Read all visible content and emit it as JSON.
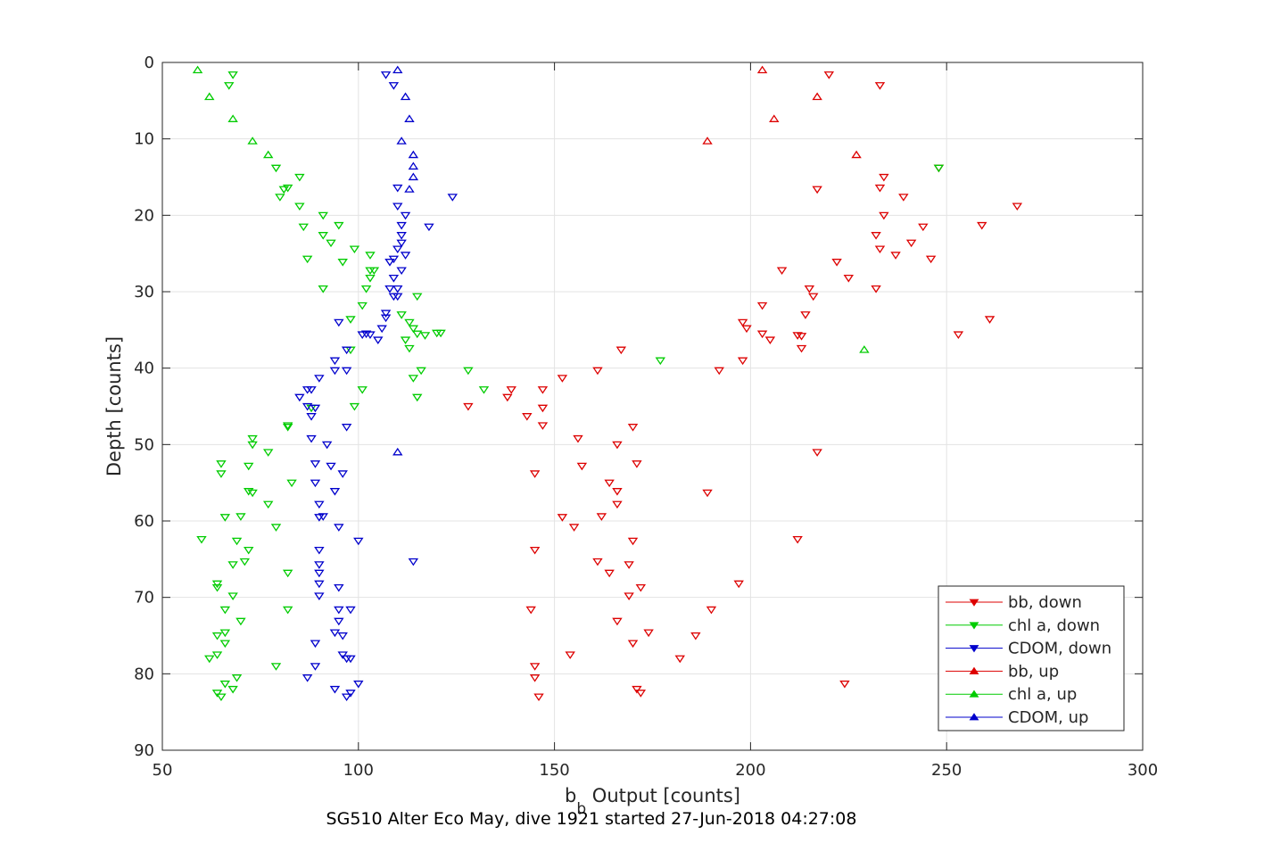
{
  "chart_data": {
    "type": "scatter",
    "title": "",
    "subtitle": "SG510 Alter Eco May, dive 1921 started 27-Jun-2018 04:27:08",
    "xlabel": "b",
    "xlabel_sub": "b",
    "xlabel_rest": " Output [counts]",
    "ylabel": "Depth [counts]",
    "xlim": [
      50,
      300
    ],
    "ylim": [
      0,
      90
    ],
    "y_reversed": true,
    "grid": true,
    "legend_position": "bottom-right",
    "x_ticks": [
      "50",
      "100",
      "150",
      "200",
      "250",
      "300"
    ],
    "y_ticks": [
      "0",
      "10",
      "20",
      "30",
      "40",
      "50",
      "60",
      "70",
      "80",
      "90"
    ],
    "series": [
      {
        "name": "bb, down",
        "marker": "triangle-down",
        "color": "#dd0000",
        "points": [
          [
            220,
            1.6
          ],
          [
            233,
            3
          ],
          [
            248,
            13.8
          ],
          [
            234,
            15
          ],
          [
            233,
            16.4
          ],
          [
            217,
            16.6
          ],
          [
            239,
            17.6
          ],
          [
            268,
            18.8
          ],
          [
            234,
            20
          ],
          [
            259,
            21.3
          ],
          [
            244,
            21.5
          ],
          [
            232,
            22.6
          ],
          [
            241,
            23.6
          ],
          [
            233,
            24.4
          ],
          [
            237,
            25.2
          ],
          [
            246,
            25.7
          ],
          [
            222,
            26.1
          ],
          [
            208,
            27.2
          ],
          [
            225,
            28.2
          ],
          [
            215,
            29.6
          ],
          [
            232,
            29.6
          ],
          [
            216,
            30.6
          ],
          [
            203,
            31.8
          ],
          [
            214,
            33
          ],
          [
            261,
            33.6
          ],
          [
            198,
            34
          ],
          [
            199,
            34.8
          ],
          [
            203,
            35.5
          ],
          [
            212,
            35.7
          ],
          [
            213,
            35.8
          ],
          [
            253,
            35.6
          ],
          [
            205,
            36.3
          ],
          [
            213,
            37.4
          ],
          [
            167,
            37.6
          ],
          [
            198,
            39
          ],
          [
            192,
            40.3
          ],
          [
            161,
            40.3
          ],
          [
            152,
            41.3
          ],
          [
            139,
            42.8
          ],
          [
            147,
            42.8
          ],
          [
            138,
            43.8
          ],
          [
            128,
            45
          ],
          [
            147,
            45.2
          ],
          [
            143,
            46.3
          ],
          [
            170,
            47.7
          ],
          [
            147,
            47.5
          ],
          [
            156,
            49.2
          ],
          [
            166,
            50
          ],
          [
            217,
            51
          ],
          [
            171,
            52.5
          ],
          [
            157,
            52.8
          ],
          [
            145,
            53.8
          ],
          [
            164,
            55
          ],
          [
            166,
            56.1
          ],
          [
            189,
            56.3
          ],
          [
            166,
            57.8
          ],
          [
            152,
            59.5
          ],
          [
            162,
            59.4
          ],
          [
            155,
            60.8
          ],
          [
            212,
            62.4
          ],
          [
            170,
            62.6
          ],
          [
            145,
            63.8
          ],
          [
            161,
            65.3
          ],
          [
            169,
            65.7
          ],
          [
            164,
            66.8
          ],
          [
            197,
            68.2
          ],
          [
            172,
            68.7
          ],
          [
            169,
            69.8
          ],
          [
            144,
            71.6
          ],
          [
            190,
            71.6
          ],
          [
            166,
            73.1
          ],
          [
            174,
            74.6
          ],
          [
            186,
            75
          ],
          [
            170,
            76
          ],
          [
            154,
            77.5
          ],
          [
            182,
            78
          ],
          [
            145,
            79
          ],
          [
            145,
            80.5
          ],
          [
            224,
            81.3
          ],
          [
            171,
            82
          ],
          [
            172,
            82.5
          ],
          [
            146,
            83
          ]
        ]
      },
      {
        "name": "chl a, down",
        "marker": "triangle-down",
        "color": "#00cc00",
        "points": [
          [
            68,
            1.6
          ],
          [
            67,
            3
          ],
          [
            248,
            13.8
          ],
          [
            79,
            13.8
          ],
          [
            85,
            15
          ],
          [
            82,
            16.4
          ],
          [
            81,
            16.6
          ],
          [
            80,
            17.6
          ],
          [
            85,
            18.8
          ],
          [
            91,
            20
          ],
          [
            95,
            21.3
          ],
          [
            86,
            21.5
          ],
          [
            91,
            22.6
          ],
          [
            93,
            23.6
          ],
          [
            99,
            24.4
          ],
          [
            103,
            25.2
          ],
          [
            87,
            25.7
          ],
          [
            96,
            26.1
          ],
          [
            103,
            27.2
          ],
          [
            103,
            28.2
          ],
          [
            104,
            27.2
          ],
          [
            102,
            29.6
          ],
          [
            91,
            29.6
          ],
          [
            115,
            30.6
          ],
          [
            101,
            31.8
          ],
          [
            111,
            33
          ],
          [
            98,
            33.6
          ],
          [
            113,
            34
          ],
          [
            114,
            34.8
          ],
          [
            115,
            35.5
          ],
          [
            117,
            35.7
          ],
          [
            120,
            35.4
          ],
          [
            121,
            35.4
          ],
          [
            112,
            36.3
          ],
          [
            113,
            37.4
          ],
          [
            98,
            37.6
          ],
          [
            177,
            39
          ],
          [
            116,
            40.3
          ],
          [
            128,
            40.3
          ],
          [
            114,
            41.3
          ],
          [
            132,
            42.8
          ],
          [
            101,
            42.8
          ],
          [
            115,
            43.8
          ],
          [
            99,
            45
          ],
          [
            88,
            45.2
          ],
          [
            82,
            47.5
          ],
          [
            82,
            47.7
          ],
          [
            73,
            49.2
          ],
          [
            73,
            50
          ],
          [
            77,
            51
          ],
          [
            65,
            52.5
          ],
          [
            72,
            52.8
          ],
          [
            65,
            53.8
          ],
          [
            83,
            55
          ],
          [
            72,
            56.1
          ],
          [
            73,
            56.3
          ],
          [
            77,
            57.8
          ],
          [
            66,
            59.5
          ],
          [
            70,
            59.4
          ],
          [
            79,
            60.8
          ],
          [
            60,
            62.4
          ],
          [
            69,
            62.6
          ],
          [
            72,
            63.8
          ],
          [
            71,
            65.3
          ],
          [
            68,
            65.7
          ],
          [
            82,
            66.8
          ],
          [
            64,
            68.2
          ],
          [
            64,
            68.7
          ],
          [
            68,
            69.8
          ],
          [
            66,
            71.6
          ],
          [
            82,
            71.6
          ],
          [
            70,
            73.1
          ],
          [
            66,
            74.6
          ],
          [
            64,
            75
          ],
          [
            66,
            76
          ],
          [
            64,
            77.5
          ],
          [
            62,
            78
          ],
          [
            79,
            79
          ],
          [
            69,
            80.5
          ],
          [
            66,
            81.3
          ],
          [
            68,
            82
          ],
          [
            64,
            82.5
          ],
          [
            65,
            83
          ]
        ]
      },
      {
        "name": "CDOM, down",
        "marker": "triangle-down",
        "color": "#0000cc",
        "points": [
          [
            109,
            3
          ],
          [
            107,
            1.6
          ],
          [
            110,
            16.4
          ],
          [
            124,
            17.6
          ],
          [
            110,
            18.8
          ],
          [
            112,
            20
          ],
          [
            111,
            21.3
          ],
          [
            118,
            21.5
          ],
          [
            111,
            22.6
          ],
          [
            111,
            23.6
          ],
          [
            110,
            24.4
          ],
          [
            112,
            25.2
          ],
          [
            109,
            25.7
          ],
          [
            108,
            26.1
          ],
          [
            111,
            27.2
          ],
          [
            109,
            28.2
          ],
          [
            110,
            29.6
          ],
          [
            109,
            30.6
          ],
          [
            108,
            29.6
          ],
          [
            110,
            30.6
          ],
          [
            107,
            32.8
          ],
          [
            107,
            33.4
          ],
          [
            95,
            34
          ],
          [
            106,
            34.8
          ],
          [
            103,
            35.6
          ],
          [
            102,
            35.5
          ],
          [
            101,
            35.6
          ],
          [
            105,
            36.3
          ],
          [
            97,
            37.6
          ],
          [
            94,
            39
          ],
          [
            94,
            40.3
          ],
          [
            97,
            40.3
          ],
          [
            90,
            41.3
          ],
          [
            88,
            42.8
          ],
          [
            87,
            42.8
          ],
          [
            85,
            43.8
          ],
          [
            87,
            45
          ],
          [
            89,
            45.2
          ],
          [
            88,
            46.3
          ],
          [
            97,
            47.7
          ],
          [
            88,
            49.2
          ],
          [
            92,
            50
          ],
          [
            89,
            52.5
          ],
          [
            93,
            52.8
          ],
          [
            96,
            53.8
          ],
          [
            89,
            55
          ],
          [
            94,
            56.1
          ],
          [
            90,
            57.8
          ],
          [
            90,
            59.5
          ],
          [
            91,
            59.4
          ],
          [
            95,
            60.8
          ],
          [
            100,
            62.6
          ],
          [
            90,
            63.8
          ],
          [
            114,
            65.3
          ],
          [
            90,
            65.7
          ],
          [
            90,
            66.8
          ],
          [
            90,
            68.2
          ],
          [
            95,
            68.7
          ],
          [
            90,
            69.8
          ],
          [
            95,
            71.6
          ],
          [
            98,
            71.6
          ],
          [
            95,
            73.1
          ],
          [
            94,
            74.6
          ],
          [
            96,
            75
          ],
          [
            89,
            76
          ],
          [
            96,
            77.5
          ],
          [
            97,
            78
          ],
          [
            89,
            79
          ],
          [
            98,
            78
          ],
          [
            87,
            80.5
          ],
          [
            100,
            81.3
          ],
          [
            94,
            82
          ],
          [
            98,
            82.5
          ],
          [
            97,
            83
          ]
        ]
      },
      {
        "name": "bb, up",
        "marker": "triangle-up",
        "color": "#dd0000",
        "points": [
          [
            203,
            1
          ],
          [
            217,
            4.5
          ],
          [
            206,
            7.4
          ],
          [
            189,
            10.3
          ],
          [
            227,
            12.1
          ]
        ]
      },
      {
        "name": "chl a, up",
        "marker": "triangle-up",
        "color": "#00cc00",
        "points": [
          [
            59,
            1
          ],
          [
            62,
            4.5
          ],
          [
            68,
            7.4
          ],
          [
            73,
            10.3
          ],
          [
            77,
            12.1
          ],
          [
            229,
            37.6
          ]
        ]
      },
      {
        "name": "CDOM, up",
        "marker": "triangle-up",
        "color": "#0000cc",
        "points": [
          [
            110,
            1
          ],
          [
            112,
            4.5
          ],
          [
            113,
            7.4
          ],
          [
            111,
            10.3
          ],
          [
            114,
            12.1
          ],
          [
            114,
            13.6
          ],
          [
            114,
            15
          ],
          [
            113,
            16.6
          ],
          [
            110,
            51
          ]
        ]
      }
    ]
  }
}
